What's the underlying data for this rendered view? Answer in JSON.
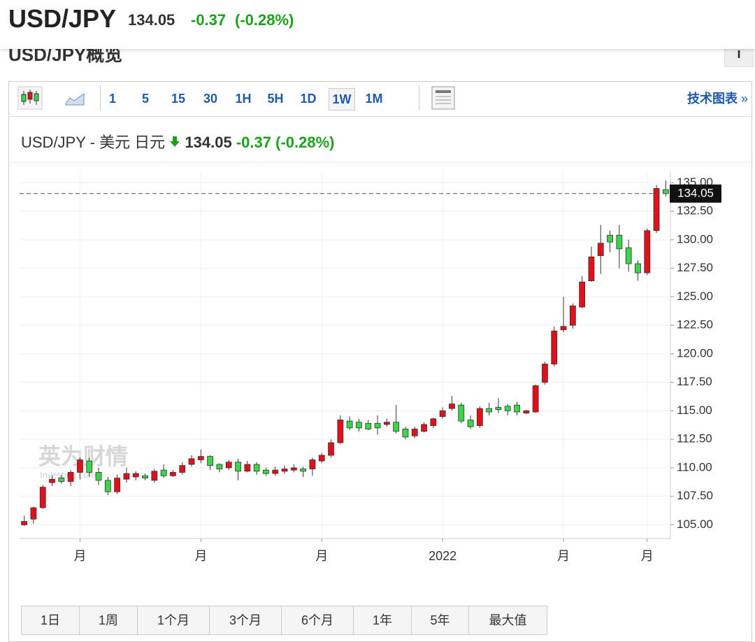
{
  "header": {
    "symbol": "USD/JPY",
    "price": "134.05",
    "change": "-0.37",
    "change_pct": "(-0.28%)"
  },
  "overview": {
    "title": "USD/JPY概览",
    "info": "i"
  },
  "toolbar": {
    "intervals": [
      "1",
      "5",
      "15",
      "30",
      "1H",
      "5H",
      "1D",
      "1W",
      "1M"
    ],
    "selected": "1W",
    "link": "技术图表",
    "link_arrow": "»"
  },
  "chart_data": {
    "type": "candlestick",
    "title": "USD/JPY - 美元 日元",
    "price": "134.05",
    "change": "-0.37",
    "change_pct": "(-0.28%)",
    "watermark": "英为财情",
    "watermark_sub": "Investing.com",
    "categories": [
      null,
      null,
      null,
      null,
      null,
      null,
      "月",
      null,
      null,
      null,
      null,
      null,
      null,
      null,
      null,
      null,
      null,
      null,
      null,
      "月",
      null,
      null,
      null,
      null,
      null,
      null,
      null,
      null,
      null,
      null,
      null,
      null,
      "月",
      null,
      null,
      null,
      null,
      null,
      null,
      null,
      null,
      null,
      null,
      null,
      null,
      "2022",
      null,
      null,
      null,
      null,
      null,
      null,
      null,
      null,
      null,
      null,
      null,
      null,
      "月",
      null,
      null,
      null,
      null,
      null,
      null,
      null,
      null,
      "月",
      null,
      null
    ],
    "open": [
      105.0,
      105.5,
      106.5,
      108.7,
      109.1,
      108.8,
      109.6,
      110.6,
      109.6,
      108.9,
      107.9,
      109.0,
      109.2,
      109.3,
      108.9,
      109.8,
      109.3,
      109.6,
      110.3,
      110.7,
      111.0,
      110.3,
      110.0,
      110.5,
      109.7,
      110.3,
      109.8,
      109.5,
      109.7,
      109.8,
      109.9,
      109.9,
      110.6,
      111.1,
      112.2,
      114.1,
      114.0,
      113.9,
      113.9,
      113.8,
      114.0,
      113.4,
      112.8,
      113.2,
      113.7,
      114.5,
      115.2,
      115.5,
      114.2,
      113.7,
      115.2,
      115.3,
      115.4,
      115.5,
      114.8,
      114.9,
      117.5,
      119.1,
      122.1,
      122.5,
      124.1,
      126.4,
      128.6,
      130.4,
      130.4,
      129.3,
      127.9,
      127.1,
      130.8,
      134.4
    ],
    "high": [
      105.8,
      106.6,
      108.5,
      109.3,
      109.4,
      109.8,
      110.9,
      110.9,
      110.0,
      109.2,
      109.4,
      110.0,
      109.7,
      109.5,
      109.9,
      110.3,
      109.8,
      110.5,
      111.1,
      111.6,
      111.1,
      110.4,
      110.7,
      110.8,
      110.6,
      110.5,
      110.0,
      110.1,
      110.2,
      110.3,
      110.1,
      110.9,
      111.3,
      112.5,
      114.6,
      114.5,
      114.3,
      114.2,
      114.6,
      114.3,
      115.5,
      113.6,
      113.6,
      114.0,
      114.4,
      115.3,
      116.3,
      115.7,
      114.6,
      115.4,
      115.7,
      116.1,
      115.6,
      115.8,
      115.1,
      117.3,
      119.3,
      122.4,
      125.0,
      124.4,
      126.8,
      129.4,
      131.3,
      130.8,
      131.3,
      130.0,
      128.2,
      131.0,
      134.8,
      135.2
    ],
    "low": [
      104.9,
      105.1,
      106.4,
      108.4,
      108.6,
      108.4,
      109.0,
      109.2,
      108.5,
      107.6,
      107.7,
      108.7,
      108.9,
      108.9,
      108.7,
      109.1,
      109.2,
      109.4,
      110.1,
      110.4,
      109.8,
      109.6,
      109.8,
      108.9,
      109.6,
      109.4,
      109.3,
      109.3,
      109.5,
      109.6,
      109.2,
      109.3,
      110.4,
      110.9,
      112.1,
      113.3,
      113.2,
      113.3,
      112.9,
      113.6,
      113.0,
      112.5,
      112.6,
      113.1,
      113.5,
      114.3,
      115.0,
      113.9,
      113.4,
      113.5,
      114.6,
      114.8,
      114.6,
      114.6,
      114.7,
      114.8,
      117.3,
      118.9,
      121.9,
      122.2,
      124.0,
      126.3,
      127.0,
      128.9,
      127.5,
      127.2,
      126.4,
      126.9,
      130.6,
      133.8
    ],
    "close": [
      105.3,
      106.5,
      108.3,
      109.0,
      108.8,
      109.6,
      110.7,
      109.6,
      108.9,
      107.9,
      109.1,
      109.5,
      109.5,
      109.1,
      109.7,
      109.3,
      109.6,
      110.2,
      110.8,
      111.0,
      110.2,
      109.9,
      110.5,
      109.7,
      110.3,
      109.7,
      109.5,
      109.8,
      109.9,
      110.0,
      109.7,
      110.7,
      111.1,
      112.2,
      114.2,
      113.5,
      113.5,
      113.4,
      113.5,
      114.0,
      113.2,
      112.7,
      113.4,
      113.8,
      114.3,
      115.0,
      115.6,
      114.1,
      113.6,
      115.2,
      114.9,
      115.1,
      115.0,
      114.9,
      115.0,
      117.2,
      119.1,
      122.0,
      122.4,
      124.2,
      126.3,
      128.5,
      129.7,
      129.8,
      129.2,
      127.9,
      127.1,
      130.8,
      134.5,
      134.05
    ],
    "up_color": "#e3101b",
    "down_color": "#3bd54a",
    "ylim": [
      103.8,
      136.0
    ],
    "yticks": [
      {
        "value": 105,
        "label": "105.00"
      },
      {
        "value": 107.5,
        "label": "107.50"
      },
      {
        "value": 110,
        "label": "110.00"
      },
      {
        "value": 112.5,
        "label": "112.50"
      },
      {
        "value": 115,
        "label": "115.00"
      },
      {
        "value": 117.5,
        "label": "117.50"
      },
      {
        "value": 120,
        "label": "120.00"
      },
      {
        "value": 122.5,
        "label": "122.50"
      },
      {
        "value": 125,
        "label": "125.00"
      },
      {
        "value": 127.5,
        "label": "127.50"
      },
      {
        "value": 130,
        "label": "130.00"
      },
      {
        "value": 132.5,
        "label": "132.50"
      },
      {
        "value": 135,
        "label": "135.00"
      }
    ],
    "grid": true
  },
  "ranges": [
    "1日",
    "1周",
    "1个月",
    "3个月",
    "6个月",
    "1年",
    "5年",
    "最大值"
  ]
}
